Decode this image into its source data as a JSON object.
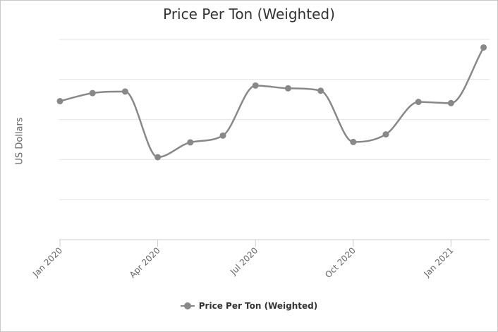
{
  "chart_data": {
    "type": "line",
    "title": "Price Per Ton (Weighted)",
    "xlabel": "",
    "ylabel": "US Dollars",
    "x_tick_labels": [
      "Jan 2020",
      "Apr 2020",
      "Jul 2020",
      "Oct 2020",
      "Jan 2021"
    ],
    "x": [
      "2020-01",
      "2020-02",
      "2020-03",
      "2020-04",
      "2020-05",
      "2020-06",
      "2020-07",
      "2020-08",
      "2020-09",
      "2020-10",
      "2020-11",
      "2020-12",
      "2021-01",
      "2021-02"
    ],
    "series": [
      {
        "name": "Price Per Ton (Weighted)",
        "color": "#888888",
        "values": [
          2.46,
          2.66,
          2.7,
          1.06,
          1.43,
          1.6,
          2.85,
          2.78,
          2.72,
          1.44,
          1.63,
          2.44,
          2.41,
          3.8
        ]
      }
    ],
    "y_tick_labels": [],
    "ylim": [
      -1,
      4
    ],
    "grid": true,
    "legend": "bottom-center"
  }
}
